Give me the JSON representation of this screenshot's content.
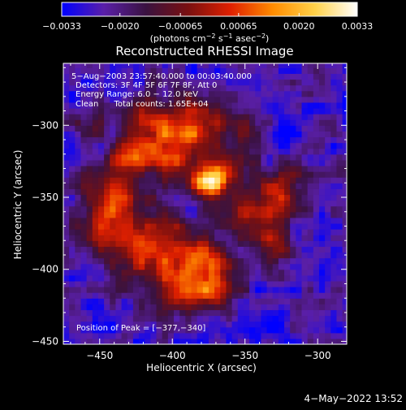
{
  "chart_data": {
    "type": "heatmap",
    "title": "Reconstructed RHESSI Image",
    "xlabel": "Heliocentric X (arcsec)",
    "ylabel": "Heliocentric Y (arcsec)",
    "xlim": [
      -475,
      -280
    ],
    "ylim": [
      -452,
      -257
    ],
    "x_ticks": [
      -450,
      -400,
      -350,
      -300
    ],
    "y_ticks": [
      -300,
      -350,
      -400,
      -450
    ],
    "x_tick_labels": [
      "−450",
      "−400",
      "−350",
      "−300"
    ],
    "y_tick_labels": [
      "−300",
      "−350",
      "−400",
      "−450"
    ],
    "colorbar": {
      "range": [
        -0.0033,
        0.0033
      ],
      "ticks": [
        -0.0033,
        -0.002,
        -0.00065,
        0.00065,
        0.002,
        0.0033
      ],
      "tick_labels": [
        "−0.0033",
        "−0.0020",
        "−0.00065",
        "0.00065",
        "0.0020",
        "0.0033"
      ],
      "stops": [
        "#0000ff",
        "#5a1fa8",
        "#3a1240",
        "#7a1010",
        "#e02000",
        "#ff8c00",
        "#ffd24a",
        "#ffffff"
      ],
      "label_main": "(photons cm",
      "label_exp1": "−2",
      "label_mid1": " s",
      "label_exp2": "−1",
      "label_mid2": " asec",
      "label_exp3": "−2",
      "label_end": ")"
    },
    "annotations": [
      "5−Aug−2003 23:57:40.000 to 00:03:40.000",
      "Detectors: 3F 4F 5F 6F 7F 8F, Att 0",
      "Energy Range: 6.0 − 12.0 keV",
      "Clean      Total counts: 1.65E+04"
    ],
    "peak_label": "Position of Peak = [−377,−340]",
    "peak": [
      -377,
      -340
    ],
    "emission_blobs": [
      {
        "x": -377,
        "y": -340,
        "sigma": 7,
        "amp": 1.0
      },
      {
        "x": -365,
        "y": -332,
        "sigma": 9,
        "amp": 0.55
      },
      {
        "x": -400,
        "y": -320,
        "sigma": 14,
        "amp": 0.55
      },
      {
        "x": -415,
        "y": -295,
        "sigma": 14,
        "amp": 0.5
      },
      {
        "x": -385,
        "y": -300,
        "sigma": 12,
        "amp": 0.5
      },
      {
        "x": -440,
        "y": -345,
        "sigma": 16,
        "amp": 0.5
      },
      {
        "x": -450,
        "y": -375,
        "sigma": 13,
        "amp": 0.45
      },
      {
        "x": -415,
        "y": -385,
        "sigma": 18,
        "amp": 0.65
      },
      {
        "x": -380,
        "y": -395,
        "sigma": 14,
        "amp": 0.6
      },
      {
        "x": -370,
        "y": -415,
        "sigma": 10,
        "amp": 0.55
      },
      {
        "x": -395,
        "y": -420,
        "sigma": 10,
        "amp": 0.45
      },
      {
        "x": -345,
        "y": -360,
        "sigma": 14,
        "amp": 0.5
      },
      {
        "x": -325,
        "y": -345,
        "sigma": 12,
        "amp": 0.4
      },
      {
        "x": -330,
        "y": -385,
        "sigma": 10,
        "amp": 0.35
      },
      {
        "x": -355,
        "y": -300,
        "sigma": 12,
        "amp": 0.35
      },
      {
        "x": -430,
        "y": -320,
        "sigma": 10,
        "amp": 0.4
      },
      {
        "x": -460,
        "y": -300,
        "sigma": 8,
        "amp": 0.3
      }
    ],
    "background_level": -0.15
  },
  "footer": {
    "date_stamp": "4−May−2022 13:52"
  }
}
